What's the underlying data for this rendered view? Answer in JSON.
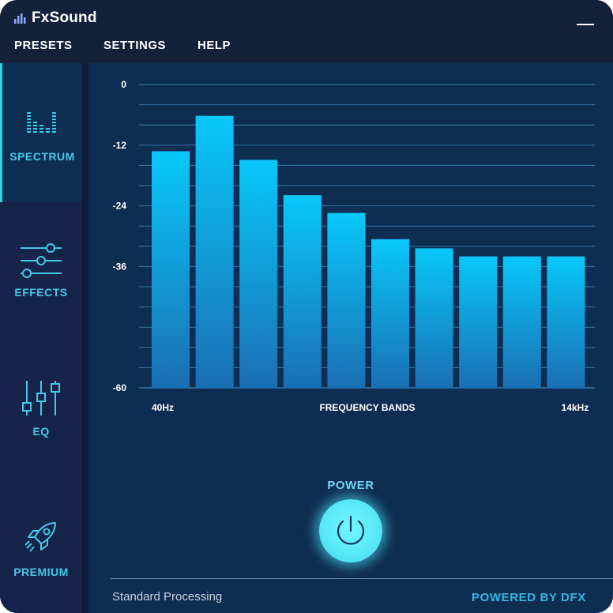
{
  "app": {
    "title": "FxSound"
  },
  "menu": {
    "presets": "PRESETS",
    "settings": "SETTINGS",
    "help": "HELP"
  },
  "sidebar": {
    "items": [
      {
        "label": "SPECTRUM",
        "icon": "spectrum-icon",
        "active": true
      },
      {
        "label": "EFFECTS",
        "icon": "sliders-icon",
        "active": false
      },
      {
        "label": "EQ",
        "icon": "equalizer-icon",
        "active": false
      },
      {
        "label": "PREMIUM",
        "icon": "rocket-icon",
        "active": false
      }
    ]
  },
  "chart_data": {
    "type": "bar",
    "categories": [
      "1",
      "2",
      "3",
      "4",
      "5",
      "6",
      "7",
      "8",
      "9",
      "10"
    ],
    "values": [
      -13.2,
      -6.2,
      -14.9,
      -21.9,
      -25.4,
      -30.6,
      -32.4,
      -34,
      -34,
      -34
    ],
    "ylim": [
      -60,
      0
    ],
    "yticks": [
      0,
      -12,
      -24,
      -36,
      -60
    ],
    "x_start_label": "40Hz",
    "x_end_label": "14kHz",
    "xlabel": "FREQUENCY BANDS",
    "grid": true,
    "colors": {
      "bar_top": "#08c8fb",
      "bar_bottom": "#1a6fb3",
      "grid": "#3f8fc8",
      "tick": "#ffffff"
    }
  },
  "power": {
    "label": "POWER",
    "state": "on"
  },
  "status": {
    "text": "Standard Processing",
    "powered_by": "POWERED BY DFX"
  },
  "colors": {
    "accent": "#2ed3e6",
    "window_bg": "#0e2d52",
    "titlebar": "#13213a"
  }
}
